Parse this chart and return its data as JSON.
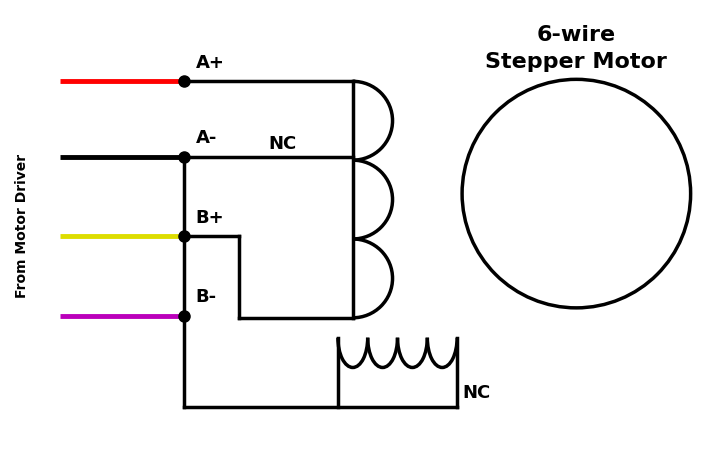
{
  "title_line1": "6-wire",
  "title_line2": "Stepper Motor",
  "title_fontsize": 16,
  "ylabel": "From Motor Driver",
  "ylabel_fontsize": 10,
  "wire_labels": [
    "A+",
    "A-",
    "B+",
    "B-"
  ],
  "wire_colors": [
    "#ff0000",
    "#000000",
    "#dddd00",
    "#bb00bb"
  ],
  "nc_label_top": "NC",
  "nc_label_bottom": "NC",
  "bg_color": "#ffffff",
  "line_color": "#000000",
  "line_width": 2.5
}
